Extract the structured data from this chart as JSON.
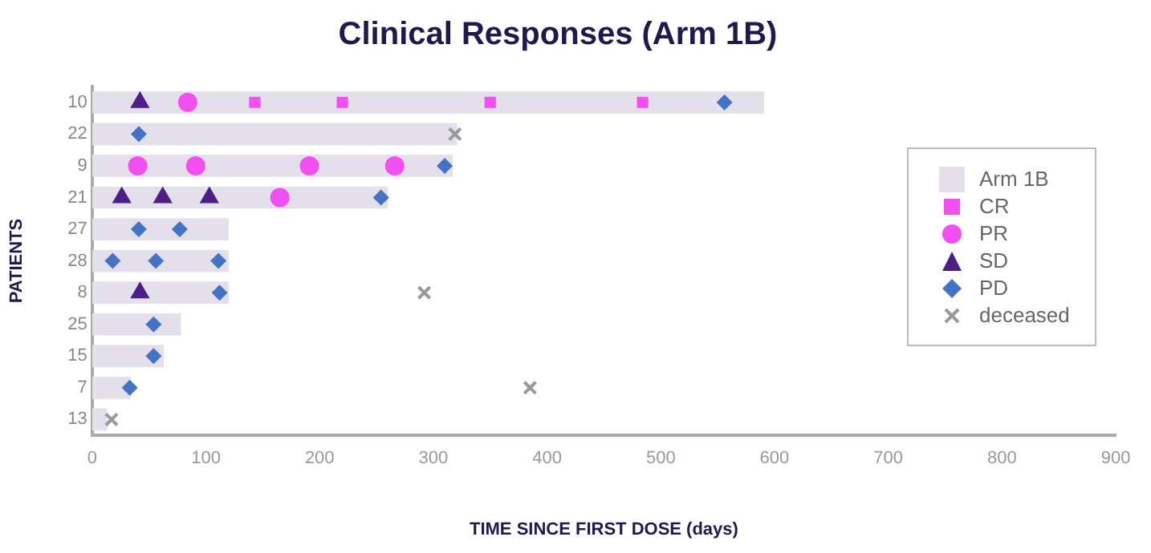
{
  "chart_data": {
    "type": "bar",
    "orientation": "horizontal",
    "title": "Clinical Responses (Arm 1B)",
    "xlabel": "TIME SINCE FIRST DOSE (days)",
    "ylabel": "PATIENTS",
    "categories": [
      "10",
      "22",
      "9",
      "21",
      "27",
      "28",
      "8",
      "25",
      "15",
      "7",
      "13"
    ],
    "xlim": [
      0,
      900
    ],
    "xticks": [
      0,
      100,
      200,
      300,
      400,
      500,
      600,
      700,
      800,
      900
    ],
    "grid": false,
    "legend": "right",
    "series": [
      {
        "name": "Arm 1B",
        "color": "#e3dfeb",
        "values": [
          591,
          321,
          317,
          260,
          120,
          120,
          120,
          78,
          63,
          34,
          13
        ]
      },
      {
        "name": "CR",
        "type": "scatter",
        "marker": "square",
        "color": "#f24ff0",
        "x": [
          "10",
          "10",
          "10",
          "10"
        ],
        "values": [
          143,
          220,
          350,
          484
        ]
      },
      {
        "name": "PR",
        "type": "scatter",
        "marker": "circle",
        "color": "#f24ff0",
        "x": [
          "10",
          "9",
          "9",
          "9",
          "9",
          "21"
        ],
        "values": [
          84,
          40,
          91,
          191,
          266,
          165
        ]
      },
      {
        "name": "SD",
        "type": "scatter",
        "marker": "triangle",
        "color": "#4b1f86",
        "x": [
          "10",
          "21",
          "21",
          "21",
          "8"
        ],
        "values": [
          42,
          26,
          62,
          103,
          42
        ]
      },
      {
        "name": "PD",
        "type": "scatter",
        "marker": "diamond",
        "color": "#4472c4",
        "x": [
          "10",
          "22",
          "9",
          "21",
          "27",
          "27",
          "28",
          "28",
          "28",
          "8",
          "25",
          "15",
          "7"
        ],
        "values": [
          556,
          41,
          310,
          254,
          41,
          77,
          18,
          56,
          111,
          112,
          54,
          54,
          33
        ]
      },
      {
        "name": "deceased",
        "type": "scatter",
        "marker": "cross",
        "color": "#999999",
        "x": [
          "22",
          "8",
          "7",
          "13"
        ],
        "values": [
          319,
          292,
          385,
          17
        ]
      }
    ]
  }
}
